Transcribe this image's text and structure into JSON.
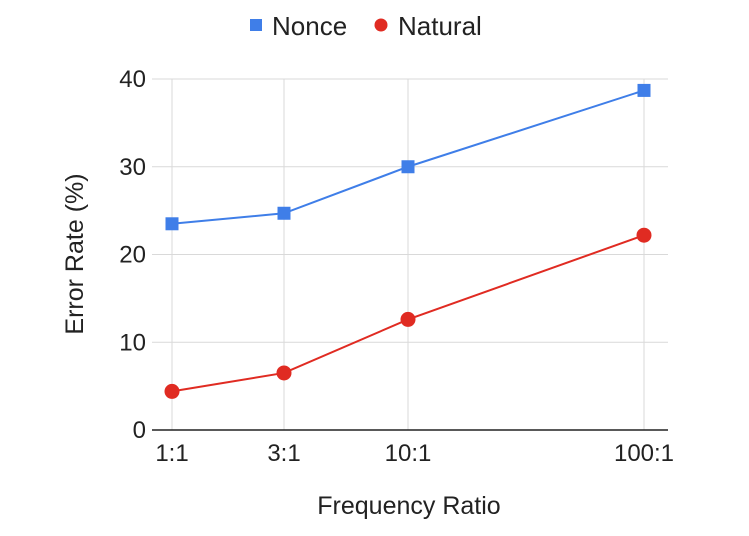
{
  "chart_data": {
    "type": "line",
    "categories": [
      "1:1",
      "3:1",
      "10:1",
      "100:1"
    ],
    "series": [
      {
        "name": "Nonce",
        "values": [
          23.5,
          24.7,
          30.0,
          38.7
        ],
        "color": "#3f7ee8",
        "marker": "square"
      },
      {
        "name": "Natural",
        "values": [
          4.4,
          6.5,
          12.6,
          22.2
        ],
        "color": "#e02b22",
        "marker": "circle"
      }
    ],
    "xlabel": "Frequency Ratio",
    "ylabel": "Error Rate (%)",
    "ylim": [
      0,
      40
    ],
    "yticks": [
      "0",
      "10",
      "20",
      "30",
      "40"
    ],
    "grid": true,
    "legend_position": "top"
  }
}
